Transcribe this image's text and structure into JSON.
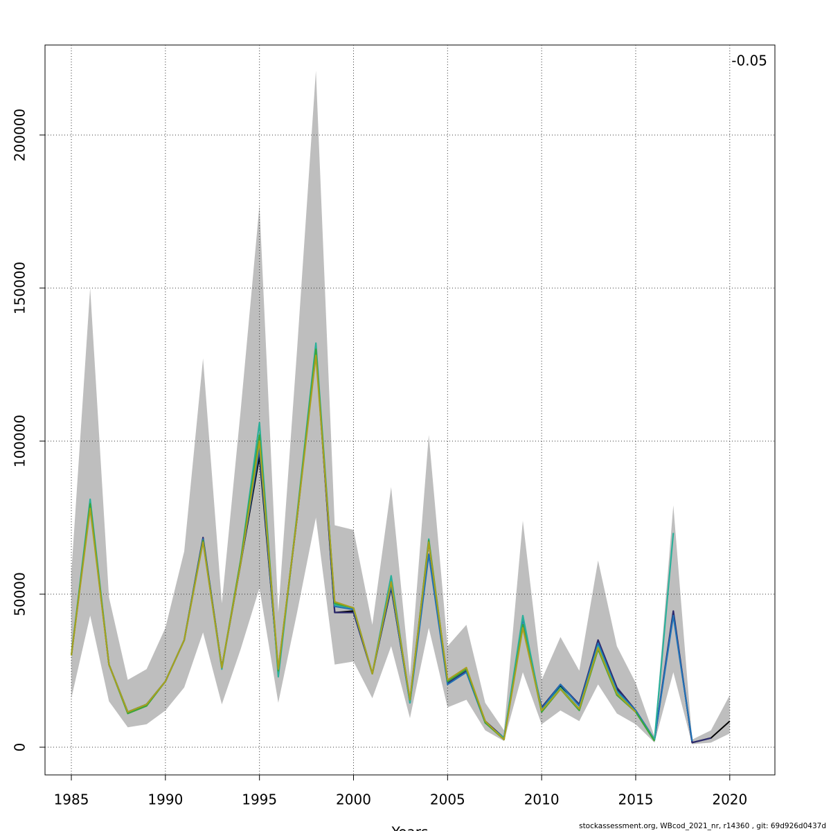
{
  "chart_data": {
    "type": "line",
    "annotation": "-0.05",
    "x_label": "Years",
    "footer": "stockassessment.org, WBcod_2021_nr, r14360 , git: 69d926d0437d",
    "x": [
      1985,
      1986,
      1987,
      1988,
      1989,
      1990,
      1991,
      1992,
      1993,
      1994,
      1995,
      1996,
      1997,
      1998,
      1999,
      2000,
      2001,
      2002,
      2003,
      2004,
      2005,
      2006,
      2007,
      2008,
      2009,
      2010,
      2011,
      2012,
      2013,
      2014,
      2015,
      2016,
      2017,
      2018,
      2019,
      2020
    ],
    "band": {
      "color": "#bebebe",
      "lower": [
        16000,
        43000,
        15000,
        6500,
        7500,
        12000,
        19500,
        37500,
        14000,
        32000,
        52000,
        14500,
        44000,
        75000,
        27000,
        28000,
        16000,
        33000,
        9500,
        39000,
        13000,
        15500,
        5500,
        2000,
        24500,
        7500,
        12000,
        8500,
        20500,
        11000,
        7500,
        1500,
        24500,
        1000,
        1500,
        4500
      ],
      "upper": [
        57000,
        150000,
        49000,
        22000,
        25500,
        39000,
        64000,
        127000,
        47000,
        110000,
        177000,
        44000,
        130000,
        221000,
        72500,
        71000,
        40000,
        85000,
        23000,
        102000,
        33000,
        40000,
        14500,
        5500,
        74000,
        22000,
        36000,
        25000,
        61000,
        33000,
        21000,
        3500,
        79000,
        2500,
        5500,
        17000
      ]
    },
    "series": [
      {
        "color": "#000000",
        "values": [
          30000,
          79000,
          27000,
          11500,
          14000,
          21500,
          35000,
          68000,
          26000,
          60000,
          95000,
          25000,
          75000,
          130000,
          44000,
          44500,
          24000,
          52000,
          15000,
          67000,
          21000,
          25000,
          8500,
          3000,
          40000,
          12500,
          20000,
          14000,
          35000,
          19000,
          12000,
          2500,
          44000,
          1500,
          3000,
          8500
        ]
      },
      {
        "color": "#2d2a6e",
        "values": [
          30000,
          79000,
          27000,
          11500,
          14000,
          21500,
          35000,
          68500,
          26000,
          60000,
          97000,
          25000,
          75000,
          130000,
          44000,
          44000,
          24000,
          52500,
          15000,
          67000,
          21000,
          25000,
          8500,
          3000,
          40000,
          13000,
          20500,
          14000,
          35000,
          19500,
          12000,
          2500,
          44500,
          1500,
          3000,
          null
        ]
      },
      {
        "color": "#2171b5",
        "values": [
          30000,
          79500,
          27000,
          11500,
          14000,
          21500,
          35000,
          68000,
          26000,
          60000,
          98000,
          24500,
          75500,
          130500,
          46000,
          45000,
          24000,
          53000,
          14500,
          63000,
          20500,
          24500,
          8000,
          3000,
          42000,
          12500,
          20500,
          13500,
          34000,
          18500,
          12000,
          2500,
          43000,
          2000,
          null,
          null
        ]
      },
      {
        "color": "#2ab09a",
        "values": [
          30000,
          81000,
          27000,
          11500,
          14000,
          21500,
          35000,
          67500,
          25500,
          61000,
          106000,
          23000,
          76000,
          132000,
          46500,
          45500,
          24000,
          56000,
          14500,
          68000,
          21500,
          25500,
          8000,
          3000,
          43000,
          12000,
          19500,
          12500,
          33000,
          18000,
          11500,
          2500,
          70000,
          null,
          null,
          null
        ]
      },
      {
        "color": "#3aa53a",
        "values": [
          30000,
          79500,
          27000,
          11000,
          13500,
          21500,
          35000,
          67500,
          26000,
          61000,
          102000,
          25000,
          75500,
          130000,
          47000,
          45500,
          24000,
          54000,
          15500,
          67500,
          21500,
          25500,
          8000,
          2500,
          40000,
          11500,
          19000,
          12000,
          32000,
          17000,
          11500,
          2000,
          null,
          null,
          null,
          null
        ]
      },
      {
        "color": "#a8a020",
        "values": [
          30000,
          78000,
          27000,
          11500,
          14000,
          21500,
          35000,
          67000,
          26000,
          60000,
          100000,
          25500,
          75000,
          128000,
          47500,
          45500,
          24000,
          54000,
          15500,
          67000,
          22000,
          26000,
          8500,
          2500,
          39000,
          12000,
          19000,
          12500,
          32500,
          17500,
          11500,
          null,
          null,
          null,
          null,
          null
        ]
      }
    ],
    "xlim": [
      1983.6,
      2022.4
    ],
    "ylim": [
      -9050,
      229400
    ],
    "xticks": [
      1985,
      1990,
      1995,
      2000,
      2005,
      2010,
      2015,
      2020
    ],
    "yticks": [
      0,
      50000,
      100000,
      150000,
      200000
    ],
    "grid": true
  }
}
